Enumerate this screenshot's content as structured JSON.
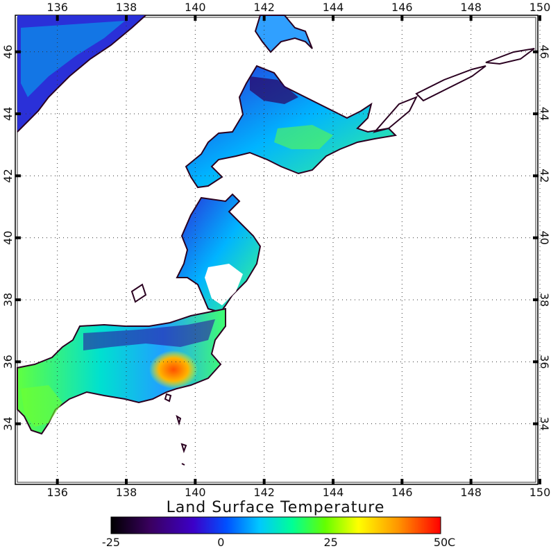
{
  "map": {
    "title": "Land Surface Temperature",
    "projection": "equirectangular",
    "lon_range": [
      135,
      150
    ],
    "lat_range": [
      32,
      47
    ],
    "top_lon_labels": [
      "136",
      "138",
      "140",
      "142",
      "144",
      "146",
      "148",
      "150"
    ],
    "bottom_lon_labels": [
      "136",
      "138",
      "140",
      "142",
      "144",
      "146",
      "148",
      "150"
    ],
    "lat_labels": [
      "34",
      "36",
      "38",
      "40",
      "42",
      "44",
      "46"
    ],
    "grid": "dotted"
  },
  "colorbar": {
    "tick_labels": [
      "-25",
      "0",
      "25",
      "50"
    ],
    "unit": "C",
    "range": [
      -25,
      50
    ],
    "colors": [
      "#000000",
      "#3a0060",
      "#3c00c8",
      "#0050ff",
      "#00c8ff",
      "#00ff96",
      "#64ff00",
      "#ffff00",
      "#ff9600",
      "#ff0000"
    ]
  },
  "colors": {
    "water": "#ffffff",
    "coast": "#2a0020",
    "grid": "#333333"
  }
}
